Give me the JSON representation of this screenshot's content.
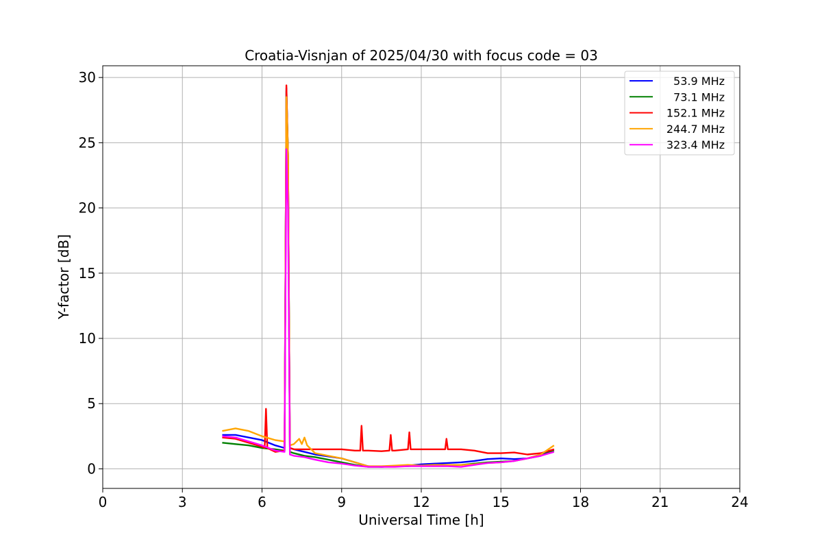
{
  "chart_data": {
    "type": "line",
    "title": "Croatia-Visnjan of 2025/04/30 with focus code = 03",
    "xlabel": "Universal Time [h]",
    "ylabel": "Y-factor [dB]",
    "xlim": [
      0,
      24
    ],
    "ylim": [
      -1.5,
      30.9
    ],
    "xticks": [
      0,
      3,
      6,
      9,
      12,
      15,
      18,
      21,
      24
    ],
    "xtick_labels": [
      "0",
      "3",
      "6",
      "9",
      "12",
      "15",
      "18",
      "21",
      "24"
    ],
    "yticks": [
      0,
      5,
      10,
      15,
      20,
      25,
      30
    ],
    "ytick_labels": [
      "0",
      "5",
      "10",
      "15",
      "20",
      "25",
      "30"
    ],
    "grid": true,
    "legend_position": "top-right",
    "series": [
      {
        "name": " 53.9 MHz",
        "color": "#0000ff",
        "x": [
          4.5,
          5.0,
          5.5,
          6.0,
          6.5,
          6.85,
          6.92,
          6.98,
          7.05,
          7.2,
          7.6,
          8.0,
          8.5,
          9.0,
          9.5,
          10.0,
          10.5,
          11.0,
          11.5,
          12.0,
          12.5,
          13.0,
          13.5,
          14.0,
          14.5,
          15.0,
          15.5,
          16.0,
          16.5,
          17.0
        ],
        "y": [
          2.6,
          2.6,
          2.4,
          2.2,
          1.8,
          1.6,
          29.2,
          24.0,
          1.6,
          1.5,
          1.3,
          1.1,
          0.95,
          0.8,
          0.5,
          0.2,
          0.15,
          0.2,
          0.25,
          0.35,
          0.4,
          0.45,
          0.5,
          0.6,
          0.75,
          0.8,
          0.75,
          0.8,
          1.1,
          1.5
        ]
      },
      {
        "name": " 73.1 MHz",
        "color": "#008000",
        "x": [
          4.5,
          5.0,
          5.5,
          6.0,
          6.5,
          6.85,
          6.92,
          6.98,
          7.05,
          7.2,
          7.6,
          8.0,
          8.5,
          9.0,
          9.5,
          10.0,
          10.5,
          11.0,
          11.5,
          12.0,
          12.5,
          13.0,
          13.5,
          14.0,
          14.5,
          15.0,
          15.5,
          16.0,
          16.5,
          17.0
        ],
        "y": [
          2.0,
          1.9,
          1.8,
          1.6,
          1.5,
          1.4,
          29.0,
          24.0,
          1.3,
          1.2,
          1.0,
          0.9,
          0.7,
          0.5,
          0.3,
          0.15,
          0.15,
          0.2,
          0.2,
          0.25,
          0.3,
          0.3,
          0.3,
          0.4,
          0.5,
          0.55,
          0.6,
          0.8,
          1.0,
          1.4
        ]
      },
      {
        "name": "152.1 MHz",
        "color": "#ff0000",
        "x": [
          4.5,
          5.0,
          5.5,
          6.0,
          6.1,
          6.15,
          6.2,
          6.5,
          6.85,
          6.92,
          6.98,
          7.05,
          7.2,
          7.6,
          8.0,
          8.5,
          9.0,
          9.5,
          9.7,
          9.75,
          9.8,
          10.0,
          10.5,
          10.8,
          10.85,
          10.9,
          11.0,
          11.5,
          11.55,
          11.6,
          12.0,
          12.5,
          12.9,
          12.95,
          13.0,
          13.5,
          14.0,
          14.5,
          15.0,
          15.5,
          16.0,
          16.5,
          17.0
        ],
        "y": [
          2.4,
          2.3,
          2.0,
          1.7,
          1.6,
          4.6,
          1.6,
          1.3,
          1.4,
          29.4,
          24.0,
          1.6,
          1.5,
          1.5,
          1.5,
          1.5,
          1.5,
          1.4,
          1.4,
          3.3,
          1.4,
          1.4,
          1.35,
          1.4,
          2.6,
          1.4,
          1.4,
          1.5,
          2.8,
          1.5,
          1.5,
          1.5,
          1.5,
          2.3,
          1.5,
          1.5,
          1.4,
          1.2,
          1.2,
          1.25,
          1.1,
          1.2,
          1.5
        ]
      },
      {
        "name": "244.7 MHz",
        "color": "#ffa500",
        "x": [
          4.5,
          5.0,
          5.5,
          6.0,
          6.5,
          6.85,
          6.92,
          6.98,
          7.05,
          7.2,
          7.4,
          7.5,
          7.6,
          7.7,
          7.8,
          8.0,
          8.5,
          9.0,
          9.5,
          10.0,
          10.5,
          11.0,
          11.5,
          12.0,
          12.5,
          13.0,
          13.5,
          14.0,
          14.5,
          15.0,
          15.5,
          16.0,
          16.5,
          17.0
        ],
        "y": [
          2.9,
          3.1,
          2.9,
          2.5,
          2.2,
          2.1,
          28.5,
          24.0,
          1.8,
          1.9,
          2.3,
          1.9,
          2.4,
          1.8,
          1.6,
          1.2,
          1.0,
          0.8,
          0.5,
          0.2,
          0.2,
          0.25,
          0.3,
          0.25,
          0.3,
          0.3,
          0.3,
          0.35,
          0.45,
          0.5,
          0.6,
          0.8,
          1.1,
          1.8
        ]
      },
      {
        "name": "323.4 MHz",
        "color": "#ff00ff",
        "x": [
          4.5,
          5.0,
          5.5,
          6.0,
          6.5,
          6.85,
          6.92,
          6.98,
          7.05,
          7.2,
          7.6,
          8.0,
          8.5,
          9.0,
          9.5,
          10.0,
          10.5,
          11.0,
          11.5,
          12.0,
          12.5,
          13.0,
          13.5,
          14.0,
          14.5,
          15.0,
          15.5,
          16.0,
          16.5,
          17.0
        ],
        "y": [
          2.5,
          2.4,
          2.1,
          1.8,
          1.4,
          1.3,
          24.5,
          20.0,
          1.1,
          1.0,
          0.9,
          0.7,
          0.5,
          0.4,
          0.25,
          0.15,
          0.15,
          0.15,
          0.2,
          0.2,
          0.2,
          0.2,
          0.15,
          0.3,
          0.45,
          0.5,
          0.6,
          0.8,
          1.0,
          1.3
        ]
      }
    ]
  }
}
